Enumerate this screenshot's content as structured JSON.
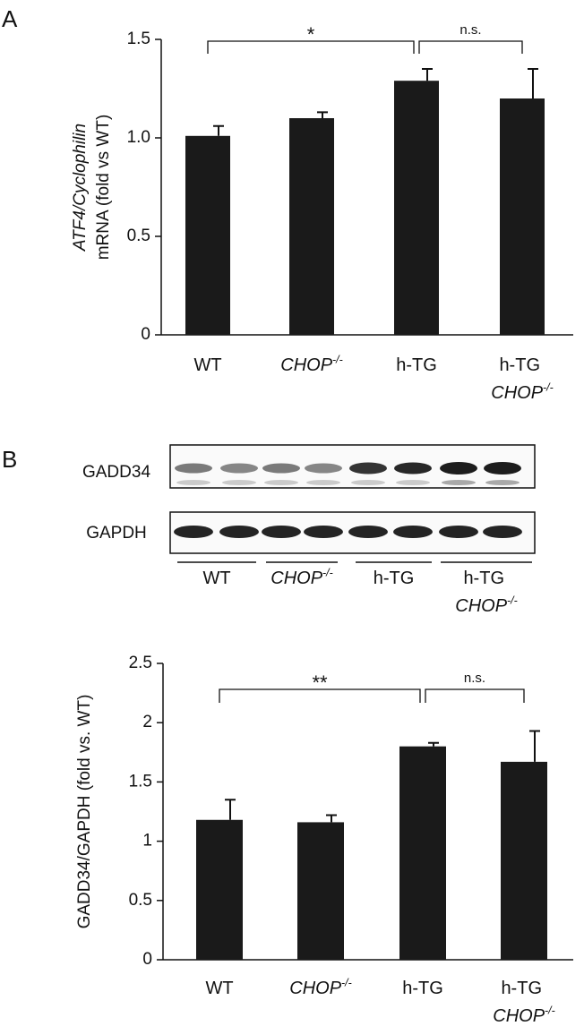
{
  "panel_labels": [
    "A",
    "B"
  ],
  "blot": {
    "rows": [
      "GADD34",
      "GAPDH"
    ],
    "lanes": [
      "WT",
      "CHOP-/-",
      "h-TG",
      "h-TG CHOP-/-"
    ]
  },
  "chart_data": [
    {
      "type": "bar",
      "ylabel": [
        "ATF4/Cyclophilin",
        "mRNA (fold vs WT)"
      ],
      "categories": [
        "WT",
        "CHOP-/-",
        "h-TG",
        "h-TG CHOP-/-"
      ],
      "values": [
        1.01,
        1.1,
        1.29,
        1.2
      ],
      "errors": [
        0.05,
        0.03,
        0.06,
        0.15
      ],
      "color": "#1a1a1a",
      "ylim": [
        0,
        1.5
      ],
      "yticks": [
        0,
        0.5,
        {
          "value": 1,
          "label": "1.0"
        },
        1.5
      ],
      "annotations": [
        {
          "text": "*",
          "from": 0,
          "to": 2
        },
        {
          "text": "n.s.",
          "from": 2,
          "to": 3
        }
      ]
    },
    {
      "type": "bar",
      "ylabel": "GADD34/GAPDH (fold vs. WT)",
      "categories": [
        "WT",
        "CHOP-/-",
        "h-TG",
        "h-TG CHOP-/-"
      ],
      "values": [
        1.18,
        1.16,
        1.8,
        1.67
      ],
      "errors": [
        0.17,
        0.06,
        0.03,
        0.26
      ],
      "color": "#1a1a1a",
      "ylim": [
        0,
        2.5
      ],
      "yticks": [
        0,
        0.5,
        1,
        1.5,
        2,
        2.5
      ],
      "annotations": [
        {
          "text": "**",
          "from": 0,
          "to": 2
        },
        {
          "text": "n.s.",
          "from": 2,
          "to": 3
        }
      ]
    }
  ]
}
